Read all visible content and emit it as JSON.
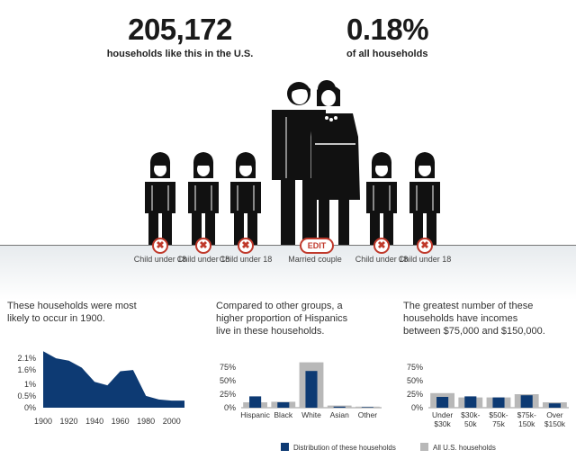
{
  "stats": {
    "households_count": "205,172",
    "households_label": "households like this in the U.S.",
    "percent": "0.18%",
    "percent_label": "of all households"
  },
  "members": [
    {
      "label": "Child under 18",
      "button": "✖"
    },
    {
      "label": "Child under 18",
      "button": "✖"
    },
    {
      "label": "Child under 18",
      "button": "✖"
    },
    {
      "label": "Married couple",
      "button": "EDIT"
    },
    {
      "label": "Child under 18",
      "button": "✖"
    },
    {
      "label": "Child under 18",
      "button": "✖"
    }
  ],
  "panels": {
    "era_text": "These households were most likely to occur in 1900.",
    "race_text": "Compared to other groups, a higher proportion of Hispanics live in these households.",
    "income_text": "The greatest number of these households have incomes between $75,000 and $150,000."
  },
  "legend": {
    "distribution": "Distribution of these households",
    "all": "All U.S. households"
  },
  "colors": {
    "navy": "#0d3a73",
    "gray": "#b8b8b8",
    "red": "#c0392b"
  },
  "chart_data": [
    {
      "type": "area",
      "x": [
        1900,
        1910,
        1920,
        1930,
        1940,
        1950,
        1960,
        1970,
        1980,
        1990,
        2000,
        2010
      ],
      "y": [
        2.4,
        2.1,
        2.0,
        1.7,
        1.1,
        0.95,
        1.55,
        1.6,
        0.5,
        0.35,
        0.3,
        0.3
      ],
      "xticks": [
        "1900",
        "1920",
        "1940",
        "1960",
        "1980",
        "2000"
      ],
      "yticks": [
        "2.1%",
        "1.6%",
        "1%",
        "0.5%",
        "0%"
      ],
      "ylim": [
        0,
        2.6
      ]
    },
    {
      "type": "bar",
      "categories": [
        "Hispanic",
        "Black",
        "White",
        "Asian",
        "Other"
      ],
      "series": [
        {
          "name": "Distribution of these households",
          "values": [
            21,
            10,
            68,
            2,
            1
          ]
        },
        {
          "name": "All U.S. households",
          "values": [
            10,
            11,
            84,
            4,
            2
          ]
        }
      ],
      "yticks": [
        "75%",
        "50%",
        "25%",
        "0%"
      ],
      "ylim": [
        0,
        90
      ]
    },
    {
      "type": "bar",
      "categories": [
        "Under $30k",
        "$30k-50k",
        "$50k-75k",
        "$75k-150k",
        "Over $150k"
      ],
      "series": [
        {
          "name": "Distribution of these households",
          "values": [
            20,
            21,
            19,
            23,
            8
          ]
        },
        {
          "name": "All U.S. households",
          "values": [
            27,
            19,
            19,
            25,
            10
          ]
        }
      ],
      "yticks": [
        "75%",
        "50%",
        "25%",
        "0%"
      ],
      "ylim": [
        0,
        90
      ]
    }
  ]
}
